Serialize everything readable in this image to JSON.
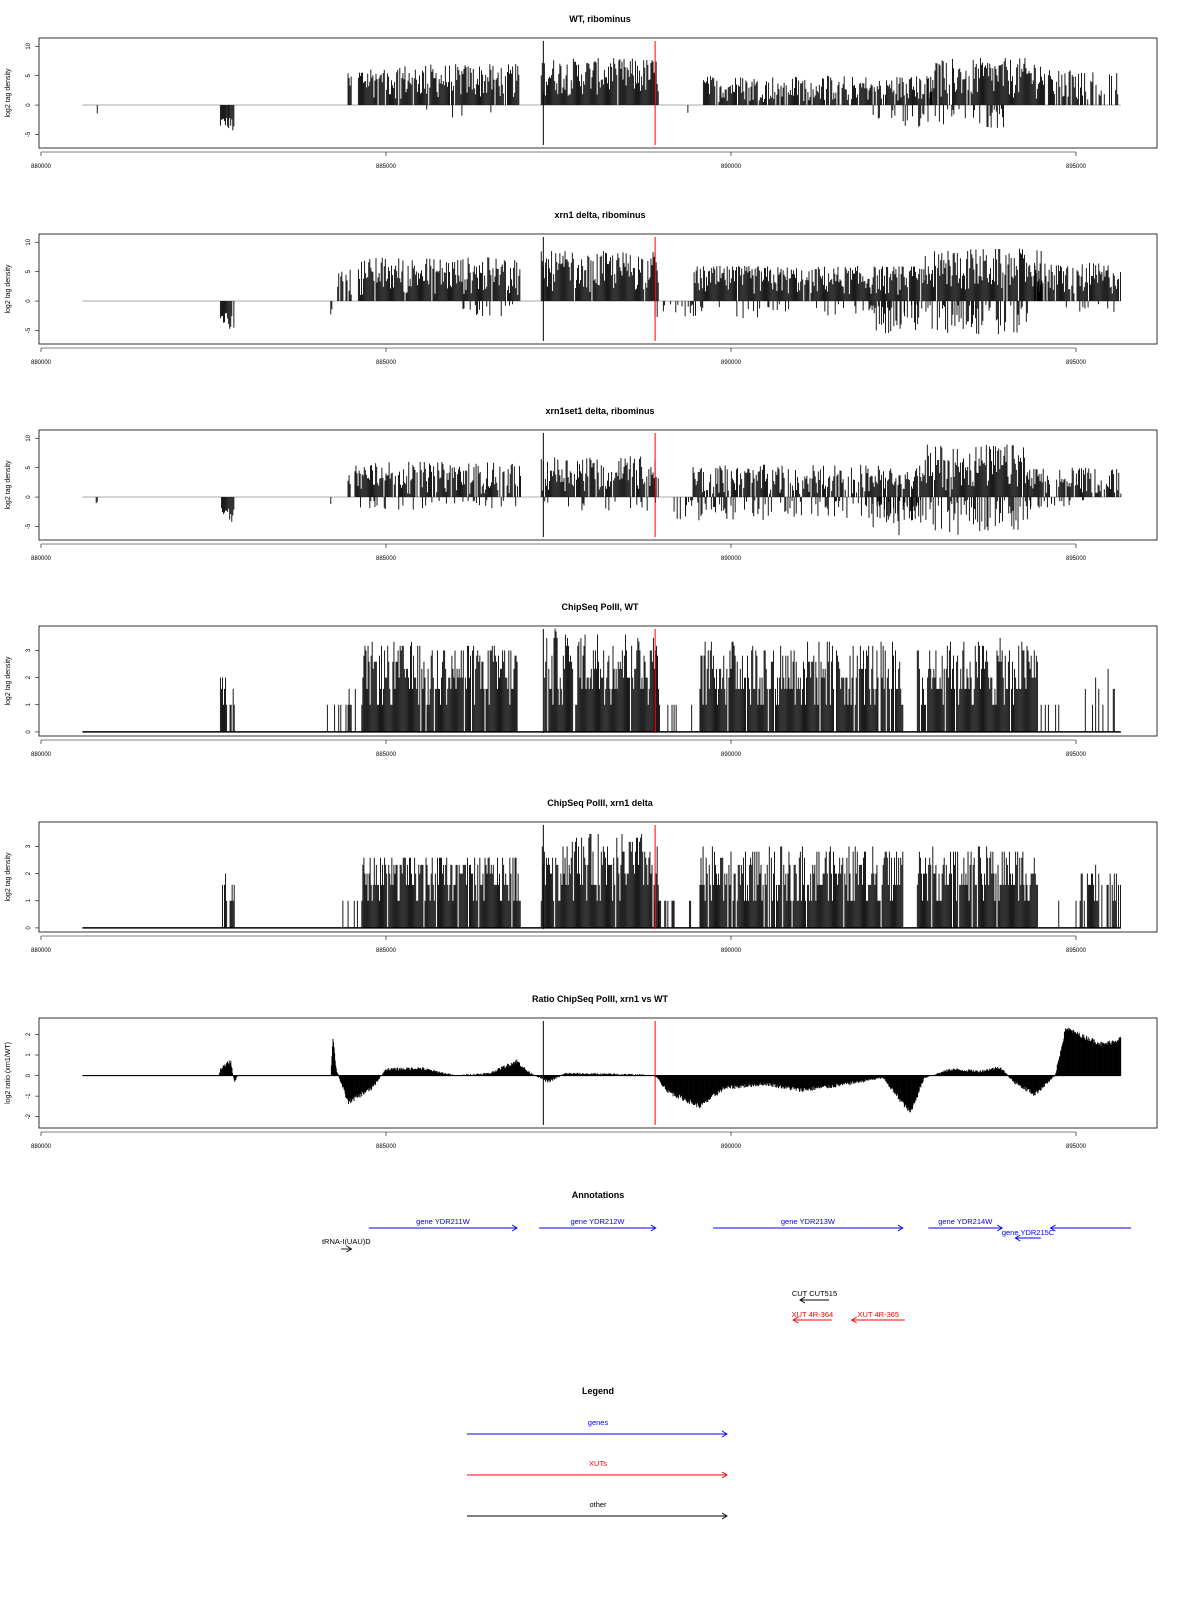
{
  "chart_data": [
    {
      "type": "bar",
      "title": "WT, ribominus",
      "ylabel": "log2 tag density",
      "xlim": [
        880000,
        895000
      ],
      "ylim": [
        -7.3,
        11.4
      ],
      "xticks": [
        "880000",
        "885000",
        "890000",
        "895000"
      ],
      "yticks": [
        "10",
        "5",
        "0",
        "-5"
      ],
      "ytick_values": [
        10,
        5,
        0,
        -5
      ],
      "baseline": [
        880600,
        895650
      ],
      "segments": [
        [
          880800,
          880820,
          -2.3,
          -1,
          0.5
        ],
        [
          881150,
          881170,
          -1.8,
          -1,
          0.5
        ],
        [
          882600,
          882720,
          -4,
          -2,
          0.9
        ],
        [
          882720,
          882800,
          -5,
          -2,
          0.9
        ],
        [
          884450,
          884500,
          1,
          5.5,
          0.9
        ],
        [
          884600,
          886950,
          1,
          7,
          0.95
        ],
        [
          885500,
          886900,
          -2.5,
          -0.5,
          0.04
        ],
        [
          887250,
          888950,
          1.5,
          8,
          0.97
        ],
        [
          889600,
          892900,
          0.5,
          5,
          0.85
        ],
        [
          889300,
          889400,
          -1.5,
          -0.5,
          0.3
        ],
        [
          892000,
          894000,
          -4,
          -0.5,
          0.25
        ],
        [
          892850,
          894550,
          1,
          8,
          0.95
        ],
        [
          894600,
          895650,
          0.5,
          6,
          0.45
        ]
      ],
      "markers": [
        {
          "x": 887280,
          "color": "#000000"
        },
        {
          "x": 888900,
          "color": "#ff0000"
        }
      ]
    },
    {
      "type": "bar",
      "title": "xrn1 delta, ribominus",
      "ylabel": "log2 tag density",
      "xlim": [
        880000,
        895000
      ],
      "ylim": [
        -7.3,
        11.4
      ],
      "xticks": [
        "880000",
        "885000",
        "890000",
        "895000"
      ],
      "yticks": [
        "10",
        "5",
        "0",
        "-5"
      ],
      "ytick_values": [
        10,
        5,
        0,
        -5
      ],
      "baseline": [
        880600,
        895650
      ],
      "segments": [
        [
          882600,
          882720,
          -4,
          -2,
          0.9
        ],
        [
          882720,
          882800,
          -5,
          -2.5,
          0.9
        ],
        [
          884200,
          884220,
          -3,
          -1,
          0.5
        ],
        [
          884300,
          884500,
          1,
          5.5,
          0.5
        ],
        [
          884600,
          886950,
          1,
          7.5,
          0.97
        ],
        [
          885800,
          886950,
          -3,
          -0.5,
          0.15
        ],
        [
          887250,
          888950,
          1.5,
          8.5,
          0.98
        ],
        [
          888900,
          889500,
          -3,
          -0.5,
          0.4
        ],
        [
          889450,
          892800,
          1,
          6,
          0.97
        ],
        [
          889500,
          892800,
          -3,
          -0.5,
          0.15
        ],
        [
          892000,
          894300,
          -6,
          -0.5,
          0.5
        ],
        [
          892800,
          894500,
          1.5,
          9,
          0.98
        ],
        [
          894400,
          895650,
          1,
          6.5,
          0.9
        ],
        [
          894500,
          895650,
          -2,
          -0.5,
          0.1
        ]
      ],
      "markers": [
        {
          "x": 887280,
          "color": "#000000"
        },
        {
          "x": 888900,
          "color": "#ff0000"
        }
      ]
    },
    {
      "type": "bar",
      "title": "xrn1set1 delta, ribominus",
      "ylabel": "log2 tag density",
      "xlim": [
        880000,
        895000
      ],
      "ylim": [
        -7.3,
        11.4
      ],
      "xticks": [
        "880000",
        "885000",
        "890000",
        "895000"
      ],
      "yticks": [
        "10",
        "5",
        "0",
        "-5"
      ],
      "ytick_values": [
        10,
        5,
        0,
        -5
      ],
      "baseline": [
        880600,
        895650
      ],
      "segments": [
        [
          880800,
          880820,
          -1.5,
          -0.8,
          0.5
        ],
        [
          882600,
          882720,
          -3,
          -1.5,
          0.9
        ],
        [
          882720,
          882800,
          -5.5,
          -2,
          0.9
        ],
        [
          884200,
          884220,
          -1.5,
          1,
          0.5
        ],
        [
          884450,
          884480,
          1,
          4,
          0.5
        ],
        [
          884550,
          886950,
          0.5,
          6,
          0.85
        ],
        [
          884600,
          886900,
          -2.5,
          -0.5,
          0.15
        ],
        [
          887250,
          888950,
          1,
          7,
          0.85
        ],
        [
          887300,
          888950,
          -2.5,
          -0.5,
          0.15
        ],
        [
          889450,
          892800,
          0.5,
          5.5,
          0.85
        ],
        [
          889100,
          892800,
          -4,
          -0.5,
          0.35
        ],
        [
          892000,
          894400,
          -6.5,
          -0.5,
          0.45
        ],
        [
          892800,
          894300,
          1,
          9,
          0.95
        ],
        [
          894300,
          895650,
          0.5,
          5,
          0.8
        ],
        [
          894300,
          895400,
          -2,
          -0.5,
          0.15
        ]
      ],
      "markers": [
        {
          "x": 887280,
          "color": "#000000"
        },
        {
          "x": 888900,
          "color": "#ff0000"
        }
      ]
    },
    {
      "type": "bar",
      "title": "ChipSeq PolII, WT",
      "ylabel": "log2 tag density",
      "xlim": [
        880000,
        895000
      ],
      "ylim": [
        -0.15,
        3.9
      ],
      "xticks": [
        "880000",
        "885000",
        "890000",
        "895000"
      ],
      "yticks": [
        "0",
        "1",
        "2",
        "3"
      ],
      "ytick_values": [
        0,
        1,
        2,
        3
      ],
      "baseline": [
        880600,
        895650
      ],
      "quantized": true,
      "segments": [
        [
          882600,
          882700,
          1,
          2,
          0.9
        ],
        [
          882740,
          882800,
          1,
          1.6,
          0.9
        ],
        [
          884150,
          884600,
          0,
          1.6,
          0.3
        ],
        [
          884650,
          886900,
          0.8,
          3.3,
          0.95
        ],
        [
          887300,
          888950,
          1,
          3.8,
          0.98
        ],
        [
          888950,
          889450,
          0,
          1,
          0.6
        ],
        [
          889550,
          892500,
          0.8,
          3.4,
          0.92
        ],
        [
          892700,
          894450,
          0.8,
          3.4,
          0.95
        ],
        [
          894450,
          894800,
          0,
          1,
          0.5
        ],
        [
          895000,
          895650,
          0,
          2.3,
          0.4
        ]
      ],
      "markers": [
        {
          "x": 887280,
          "color": "#000000"
        },
        {
          "x": 888900,
          "color": "#ff0000"
        }
      ]
    },
    {
      "type": "bar",
      "title": "ChipSeq PolII, xrn1 delta",
      "ylabel": "log2 tag density",
      "xlim": [
        880000,
        895000
      ],
      "ylim": [
        -0.15,
        3.9
      ],
      "xticks": [
        "880000",
        "885000",
        "890000",
        "895000"
      ],
      "yticks": [
        "0",
        "1",
        "2",
        "3"
      ],
      "ytick_values": [
        0,
        1,
        2,
        3
      ],
      "baseline": [
        880600,
        895650
      ],
      "quantized": true,
      "segments": [
        [
          882600,
          882700,
          1,
          2.1,
          0.9
        ],
        [
          882740,
          882800,
          1,
          1.4,
          0.9
        ],
        [
          884150,
          884600,
          0,
          1,
          0.3
        ],
        [
          884650,
          886950,
          0.8,
          2.7,
          0.97
        ],
        [
          887250,
          888950,
          1,
          3.5,
          0.98
        ],
        [
          888950,
          889450,
          0,
          1.2,
          0.6
        ],
        [
          889550,
          892500,
          0.8,
          3,
          0.95
        ],
        [
          892700,
          894450,
          0.8,
          3,
          0.97
        ],
        [
          894450,
          894800,
          0,
          1,
          0.5
        ],
        [
          895000,
          895650,
          0.3,
          2.2,
          0.7
        ]
      ],
      "markers": [
        {
          "x": 887280,
          "color": "#000000"
        },
        {
          "x": 888900,
          "color": "#ff0000"
        }
      ]
    },
    {
      "type": "area",
      "title": "Ratio ChipSeq PolII, xrn1 vs WT",
      "ylabel": "log2 ratio (xrn1/WT)",
      "xlim": [
        880000,
        895000
      ],
      "ylim": [
        -2.55,
        2.8
      ],
      "xticks": [
        "880000",
        "885000",
        "890000",
        "895000"
      ],
      "yticks": [
        "-2",
        "-1",
        "0",
        "1",
        "2"
      ],
      "ytick_values": [
        -2,
        -1,
        0,
        1,
        2
      ],
      "baseline": [
        880600,
        895650
      ],
      "knots": [
        [
          880600,
          0
        ],
        [
          882580,
          0
        ],
        [
          882600,
          0.3
        ],
        [
          882750,
          0.7
        ],
        [
          882800,
          -0.3
        ],
        [
          882850,
          0
        ],
        [
          884200,
          0
        ],
        [
          884230,
          1.9
        ],
        [
          884280,
          0.3
        ],
        [
          884450,
          -1.3
        ],
        [
          884800,
          -0.6
        ],
        [
          885000,
          0.3
        ],
        [
          885500,
          0.35
        ],
        [
          886000,
          0
        ],
        [
          886500,
          0.1
        ],
        [
          886900,
          0.7
        ],
        [
          887050,
          0.2
        ],
        [
          887350,
          -0.3
        ],
        [
          887600,
          0.1
        ],
        [
          888500,
          0.05
        ],
        [
          888900,
          0
        ],
        [
          889100,
          -0.8
        ],
        [
          889550,
          -1.5
        ],
        [
          889900,
          -0.6
        ],
        [
          890500,
          -0.4
        ],
        [
          891000,
          -0.7
        ],
        [
          891500,
          -0.5
        ],
        [
          892200,
          -0.1
        ],
        [
          892600,
          -1.8
        ],
        [
          892800,
          -0.1
        ],
        [
          893200,
          0.3
        ],
        [
          893600,
          0.2
        ],
        [
          893900,
          0.4
        ],
        [
          894100,
          -0.3
        ],
        [
          894400,
          -0.9
        ],
        [
          894700,
          0
        ],
        [
          894850,
          2.3
        ],
        [
          895100,
          1.9
        ],
        [
          895400,
          1.5
        ],
        [
          895650,
          1.8
        ]
      ],
      "markers": [
        {
          "x": 887280,
          "color": "#000000"
        },
        {
          "x": 888900,
          "color": "#ff0000"
        }
      ]
    }
  ],
  "annotations": {
    "title": "Annotations",
    "features": [
      {
        "label": "gene YDR211W",
        "start": 884750,
        "end": 886900,
        "strand": "+",
        "kind": "gene"
      },
      {
        "label": "gene YDR212W",
        "start": 887220,
        "end": 888910,
        "strand": "+",
        "kind": "gene"
      },
      {
        "label": "gene YDR213W",
        "start": 889740,
        "end": 892490,
        "strand": "+",
        "kind": "gene"
      },
      {
        "label": "gene YDR214W",
        "start": 892860,
        "end": 893930,
        "strand": "+",
        "kind": "gene"
      },
      {
        "label": "gene YDR215C",
        "start": 894120,
        "end": 894490,
        "strand": "-",
        "kind": "gene"
      },
      {
        "label": "",
        "start": 894630,
        "end": 895800,
        "strand": "+",
        "kind": "gene"
      },
      {
        "label": "tRNA-I(UAU)D",
        "start": 884350,
        "end": 884500,
        "strand": "+",
        "kind": "other"
      },
      {
        "label": "CUT CUT515",
        "start": 891000,
        "end": 891420,
        "strand": "-",
        "kind": "other"
      },
      {
        "label": "XUT 4R-364",
        "start": 890900,
        "end": 891460,
        "strand": "-",
        "kind": "xut"
      },
      {
        "label": "XUT 4R-365",
        "start": 891750,
        "end": 892520,
        "strand": "-",
        "kind": "xut"
      }
    ]
  },
  "legend": {
    "title": "Legend",
    "items": [
      {
        "label": "genes",
        "color": "#0000ff"
      },
      {
        "label": "XUTs",
        "color": "#ff0000"
      },
      {
        "label": "other",
        "color": "#000000"
      }
    ]
  },
  "colors": {
    "gene": "#0000ff",
    "xut": "#ff0000",
    "other": "#000000",
    "baseline": "#aaaaaa"
  }
}
